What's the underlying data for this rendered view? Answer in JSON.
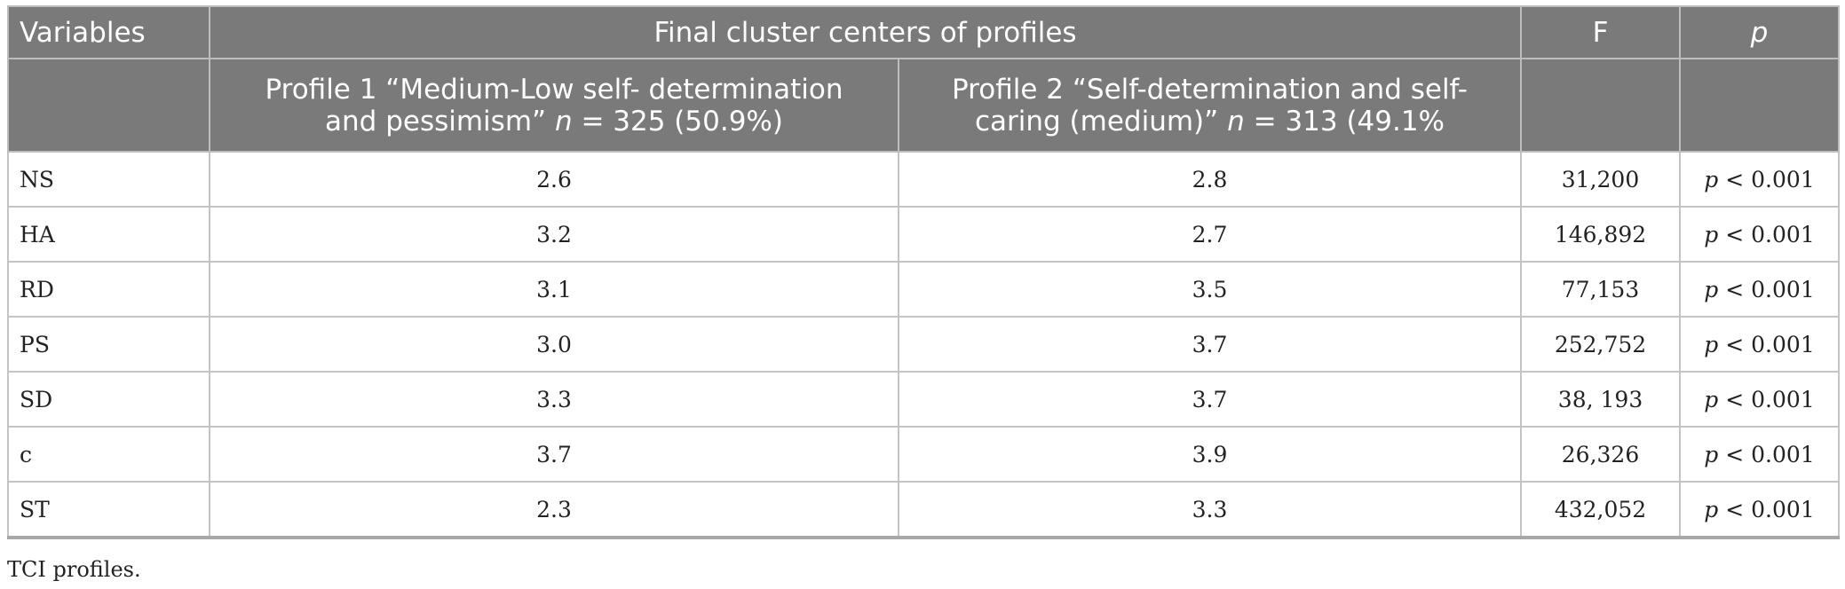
{
  "table": {
    "header": {
      "variables": "Variables",
      "group": "Final cluster centers of profiles",
      "f": "F",
      "p": "p",
      "profile1": {
        "line1": "Profile 1 “Medium-Low self- determination",
        "line2_pre": "and pessimism” ",
        "n": "n",
        "line2_post": " = 325 (50.9%)"
      },
      "profile2": {
        "line1": "Profile 2 “Self-determination and self-",
        "line2_pre": "caring (medium)” ",
        "n": "n",
        "line2_post": " = 313 (49.1%"
      }
    },
    "rows": [
      {
        "variable": "NS",
        "profile1": "2.6",
        "profile2": "2.8",
        "f": "31,200",
        "p_sym": "p",
        "p_val": " < 0.001"
      },
      {
        "variable": "HA",
        "profile1": "3.2",
        "profile2": "2.7",
        "f": "146,892",
        "p_sym": "p",
        "p_val": " < 0.001"
      },
      {
        "variable": "RD",
        "profile1": "3.1",
        "profile2": "3.5",
        "f": "77,153",
        "p_sym": "p",
        "p_val": " < 0.001"
      },
      {
        "variable": "PS",
        "profile1": "3.0",
        "profile2": "3.7",
        "f": "252,752",
        "p_sym": "p",
        "p_val": " < 0.001"
      },
      {
        "variable": "SD",
        "profile1": "3.3",
        "profile2": "3.7",
        "f": "38, 193",
        "p_sym": "p",
        "p_val": " < 0.001"
      },
      {
        "variable": "c",
        "profile1": "3.7",
        "profile2": "3.9",
        "f": "26,326",
        "p_sym": "p",
        "p_val": " < 0.001"
      },
      {
        "variable": "ST",
        "profile1": "2.3",
        "profile2": "3.3",
        "f": "432,052",
        "p_sym": "p",
        "p_val": " < 0.001"
      }
    ]
  },
  "caption": "TCI profiles."
}
